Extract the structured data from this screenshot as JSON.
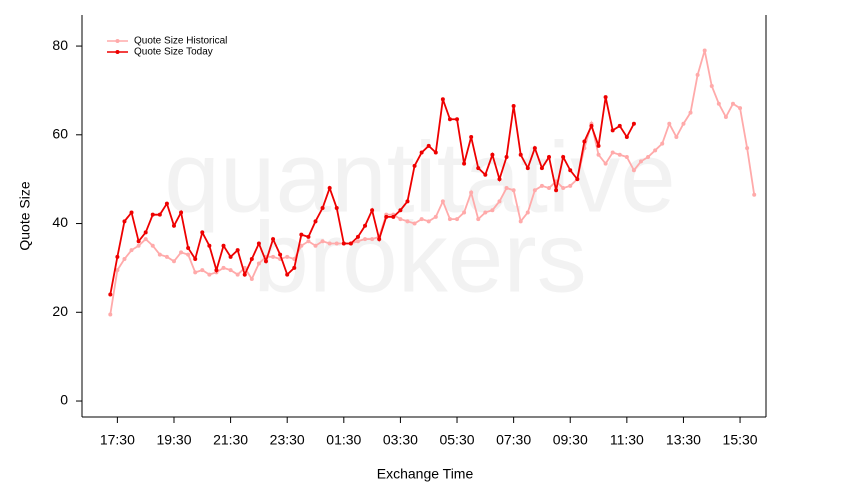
{
  "chart_data": {
    "type": "line",
    "watermark": [
      "quantitative",
      "brokers"
    ],
    "xlabel": "Exchange Time",
    "ylabel": "Quote Size",
    "x": [
      "17:15",
      "17:30",
      "17:45",
      "18:00",
      "18:15",
      "18:30",
      "18:45",
      "19:00",
      "19:15",
      "19:30",
      "19:45",
      "20:00",
      "20:15",
      "20:30",
      "20:45",
      "21:00",
      "21:15",
      "21:30",
      "21:45",
      "22:00",
      "22:15",
      "22:30",
      "22:45",
      "23:00",
      "23:15",
      "23:30",
      "23:45",
      "00:00",
      "00:15",
      "00:30",
      "00:45",
      "01:00",
      "01:15",
      "01:30",
      "01:45",
      "02:00",
      "02:15",
      "02:30",
      "02:45",
      "03:00",
      "03:15",
      "03:30",
      "03:45",
      "04:00",
      "04:15",
      "04:30",
      "04:45",
      "05:00",
      "05:15",
      "05:30",
      "05:45",
      "06:00",
      "06:15",
      "06:30",
      "06:45",
      "07:00",
      "07:15",
      "07:30",
      "07:45",
      "08:00",
      "08:15",
      "08:30",
      "08:45",
      "09:00",
      "09:15",
      "09:30",
      "09:45",
      "10:00",
      "10:15",
      "10:30",
      "10:45",
      "11:00",
      "11:15",
      "11:30",
      "11:45",
      "12:00",
      "12:15",
      "12:30",
      "12:45",
      "13:00",
      "13:15",
      "13:30",
      "13:45",
      "14:00",
      "14:15",
      "14:30",
      "14:45",
      "15:00",
      "15:15",
      "15:30",
      "15:45",
      "16:00"
    ],
    "series": [
      {
        "name": "Quote Size Historical",
        "color": "#ffaaaa",
        "values": [
          19.5,
          29.5,
          32,
          34,
          35,
          36.5,
          35,
          33,
          32.5,
          31.5,
          33.5,
          33,
          29,
          29.5,
          28.5,
          29,
          30,
          29.5,
          28.5,
          30,
          27.5,
          31,
          32.5,
          32.5,
          32,
          32.5,
          32,
          35,
          36,
          35,
          36,
          35.5,
          35.5,
          35.5,
          35.5,
          36,
          36.5,
          36.5,
          37,
          42,
          42,
          41,
          40.5,
          40,
          41,
          40.5,
          41.5,
          45,
          41,
          41,
          42.5,
          47,
          41,
          42.5,
          43,
          45,
          48,
          47.5,
          40.5,
          42.5,
          47.5,
          48.5,
          48,
          49.5,
          48,
          48.5,
          50,
          57,
          62.5,
          55.5,
          53.5,
          56,
          55.5,
          55,
          52,
          54,
          55,
          56.5,
          58,
          62.5,
          59.5,
          62.5,
          65,
          73.5,
          79,
          71,
          67,
          64,
          67,
          66,
          57,
          46.5
        ]
      },
      {
        "name": "Quote Size Today",
        "color": "#ee0000",
        "values": [
          24,
          32.5,
          40.5,
          42.5,
          36,
          38,
          42,
          42,
          44.5,
          39.5,
          42.5,
          34.5,
          32,
          38,
          35,
          29.5,
          35,
          32.5,
          34,
          28.5,
          32,
          35.5,
          31.5,
          36.5,
          33,
          28.5,
          30,
          37.5,
          37,
          40.5,
          43.5,
          48,
          43.5,
          35.5,
          35.5,
          37,
          39.5,
          43,
          36.5,
          41.5,
          41.5,
          43,
          45,
          53,
          56,
          57.5,
          56,
          68,
          63.5,
          63.5,
          53.5,
          59.5,
          52.5,
          51,
          55.5,
          50,
          55,
          66.5,
          55.5,
          52.5,
          57,
          52.5,
          55,
          47.5,
          55,
          52,
          50,
          58.5,
          62,
          57.5,
          68.5,
          61,
          62,
          59.5,
          62.5,
          null,
          null,
          null,
          null,
          null,
          null,
          null,
          null,
          null,
          null,
          null,
          null,
          null,
          null,
          null,
          null,
          null
        ]
      }
    ],
    "xlim": [
      "16:15",
      "16:25"
    ],
    "xticks": [
      "17:30",
      "19:30",
      "21:30",
      "23:30",
      "01:30",
      "03:30",
      "05:30",
      "07:30",
      "09:30",
      "11:30",
      "13:30",
      "15:30"
    ],
    "ylim": [
      -3.6,
      87
    ],
    "yticks": [
      0,
      20,
      40,
      60,
      80
    ],
    "legend": "upper left"
  }
}
